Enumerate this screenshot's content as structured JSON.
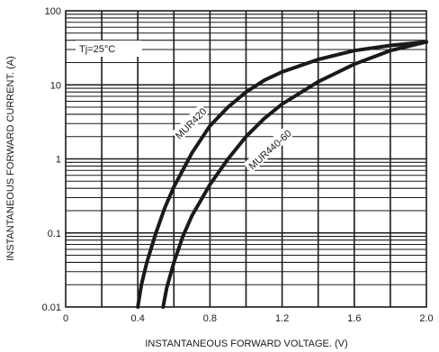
{
  "chart_data": {
    "type": "line",
    "xlabel": "INSTANTANEOUS FORWARD VOLTAGE. (V)",
    "ylabel": "INSTANTANEOUS FORWARD CURRENT. (A)",
    "xlim": [
      0,
      2.0
    ],
    "ylim": [
      0.01,
      100
    ],
    "y_scale": "log",
    "grid": true,
    "x_ticks": [
      "0",
      "0.4",
      "0.8",
      "1.2",
      "1.6",
      "2.0"
    ],
    "y_ticks": [
      "100",
      "10",
      "1",
      "0.1",
      "0.01"
    ],
    "annotation": "Tj=25°C",
    "series": [
      {
        "name": "MUR420",
        "x": [
          0.4,
          0.42,
          0.45,
          0.5,
          0.55,
          0.6,
          0.7,
          0.8,
          0.9,
          1.0,
          1.1,
          1.2,
          1.4,
          1.6,
          1.8,
          2.0
        ],
        "y": [
          0.01,
          0.02,
          0.04,
          0.1,
          0.22,
          0.42,
          1.2,
          2.8,
          5.0,
          8.0,
          11.5,
          15,
          22,
          29,
          34,
          38
        ]
      },
      {
        "name": "MUR440-60",
        "x": [
          0.54,
          0.56,
          0.6,
          0.65,
          0.7,
          0.8,
          0.9,
          1.0,
          1.1,
          1.2,
          1.4,
          1.6,
          1.8,
          2.0
        ],
        "y": [
          0.01,
          0.018,
          0.04,
          0.09,
          0.17,
          0.45,
          1.0,
          2.0,
          3.5,
          5.5,
          11,
          19,
          29,
          38
        ]
      }
    ]
  }
}
